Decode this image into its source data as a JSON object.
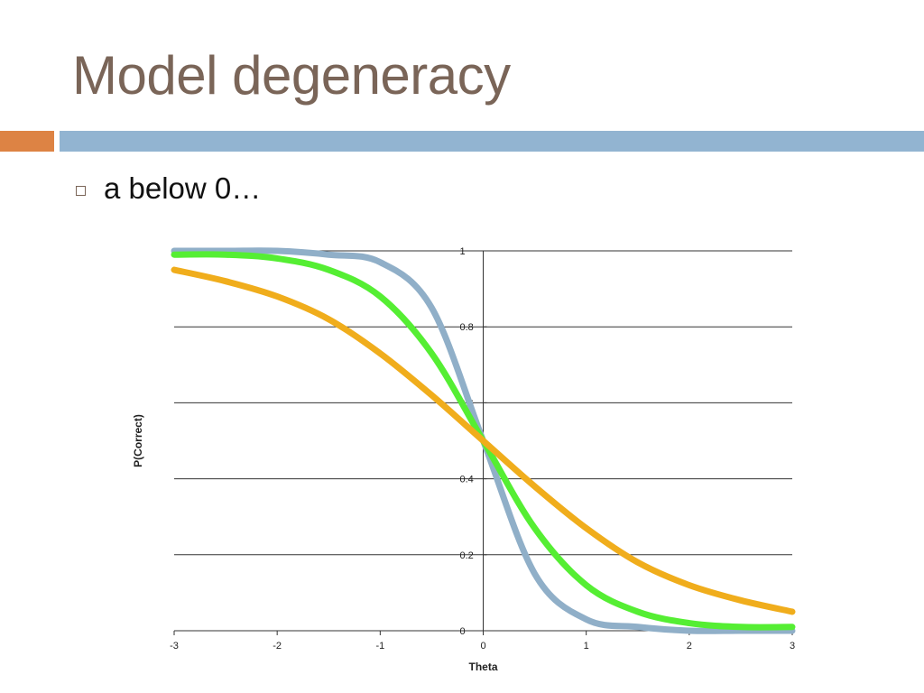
{
  "slide": {
    "title": "Model degeneracy",
    "bullet": "a below 0…"
  },
  "colors": {
    "title": "#7a6558",
    "accent_orange": "#dd8344",
    "accent_blue": "#92b4d1"
  },
  "chart_data": {
    "type": "line",
    "xlabel": "Theta",
    "ylabel": "P(Correct)",
    "xlim": [
      -3,
      3
    ],
    "ylim": [
      0,
      1
    ],
    "x_ticks": [
      "-3",
      "-2",
      "-1",
      "0",
      "1",
      "2",
      "3"
    ],
    "y_ticks": [
      "0",
      "0.2",
      "0.4",
      "0.6",
      "0.8",
      "1"
    ],
    "grid": true,
    "x": [
      -3,
      -2.5,
      -2,
      -1.5,
      -1,
      -0.5,
      0,
      0.5,
      1,
      1.5,
      2,
      2.5,
      3
    ],
    "series": [
      {
        "color": "#90afc8",
        "values": [
          1.0,
          1.0,
          1.0,
          0.99,
          0.97,
          0.85,
          0.5,
          0.15,
          0.03,
          0.01,
          0.0,
          0.0,
          0.0
        ]
      },
      {
        "color": "#55ee33",
        "values": [
          0.99,
          0.99,
          0.98,
          0.95,
          0.88,
          0.73,
          0.5,
          0.27,
          0.12,
          0.05,
          0.02,
          0.01,
          0.01
        ]
      },
      {
        "color": "#f0ad1c",
        "values": [
          0.95,
          0.92,
          0.88,
          0.82,
          0.73,
          0.62,
          0.5,
          0.38,
          0.27,
          0.18,
          0.12,
          0.08,
          0.05
        ]
      }
    ]
  }
}
